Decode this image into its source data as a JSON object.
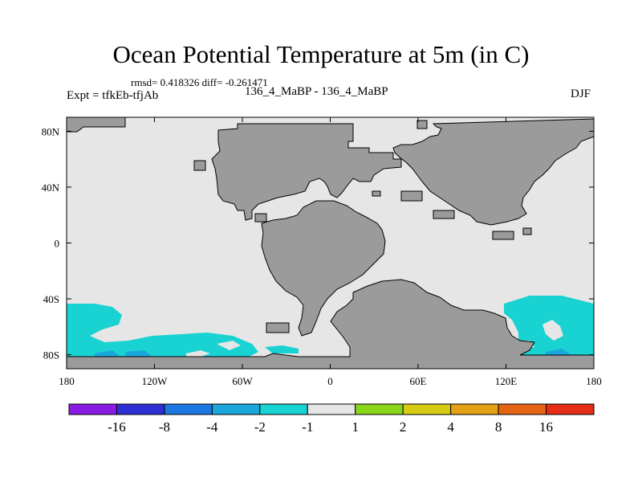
{
  "header": {
    "title": "Ocean Potential Temperature at 5m (in C)",
    "stats": "rmsd= 0.418326 diff= -0.261471",
    "experiment": "Expt = tfkEb-tfjAb",
    "comparison": "136_4_MaBP - 136_4_MaBP",
    "season": "DJF"
  },
  "map": {
    "projection": "cylindrical equidistant",
    "lon_range": [
      -180,
      180
    ],
    "lat_range": [
      -90,
      90
    ],
    "x_tick_labels": [
      "180",
      "120W",
      "60W",
      "0",
      "60E",
      "120E",
      "180"
    ],
    "y_tick_labels": [
      "80N",
      "40N",
      "0",
      "40S",
      "80S"
    ],
    "land_color": "#9b9b9b",
    "ocean_color": "#e6e6e6"
  },
  "colorbar": {
    "colors": [
      "#8a1be4",
      "#2f2fd6",
      "#1a78e0",
      "#1aa8dc",
      "#19d2d2",
      "#e6e6e6",
      "#8ad61a",
      "#d6cc14",
      "#e4a014",
      "#e46414",
      "#e42d14"
    ],
    "labels": [
      "-16",
      "-8",
      "-4",
      "-2",
      "-1",
      "1",
      "2",
      "4",
      "8",
      "16"
    ]
  }
}
